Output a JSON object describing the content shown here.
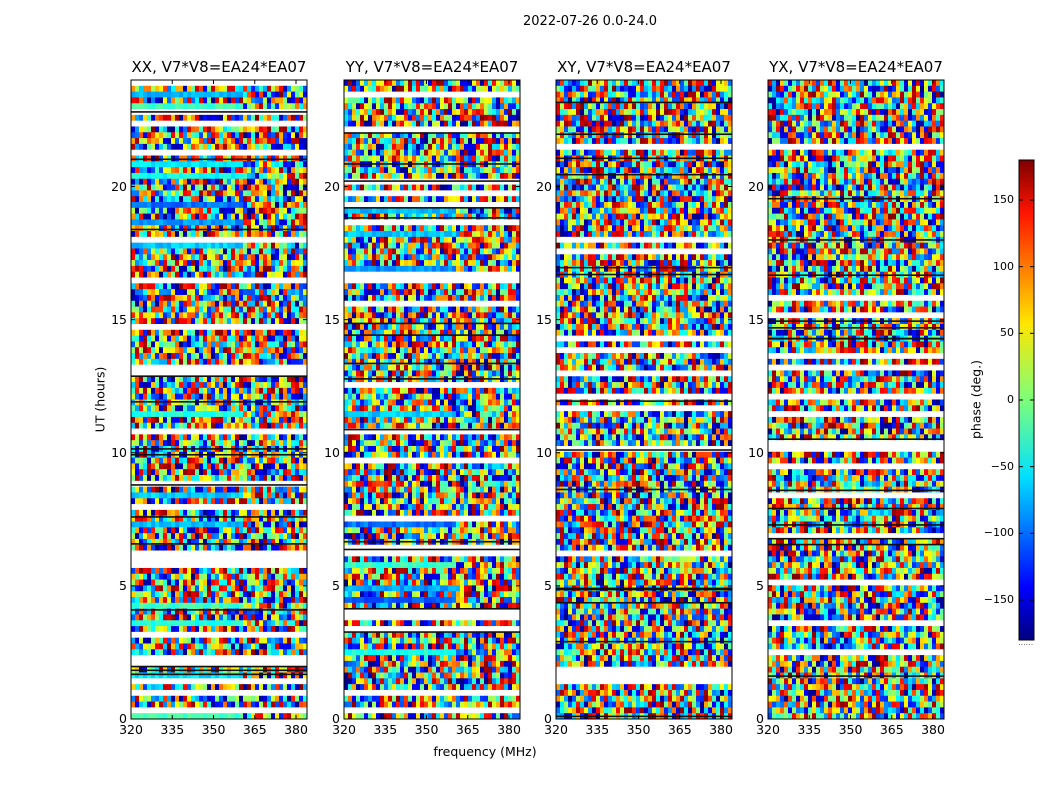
{
  "title": "2022-07-26 0.0-24.0",
  "chart_data": {
    "type": "heatmap",
    "title": "2022-07-26 0.0-24.0",
    "xlabel": "frequency (MHz)",
    "ylabel": "UT (hours)",
    "xlim": [
      320,
      384
    ],
    "ylim": [
      0,
      24
    ],
    "x_ticks": [
      320,
      335,
      350,
      365,
      380
    ],
    "y_ticks": [
      0,
      5,
      10,
      15,
      20
    ],
    "colorbar": {
      "label": "phase (deg.)",
      "range": [
        -180,
        180
      ],
      "ticks": [
        -150,
        -100,
        -50,
        0,
        50,
        100,
        150
      ],
      "colormap": "jet",
      "under_label": "......"
    },
    "panels": [
      {
        "title": "XX, V7*V8=EA24*EA07",
        "polarization": "XX",
        "baseline": "V7*V8=EA24*EA07"
      },
      {
        "title": "YY, V7*V8=EA24*EA07",
        "polarization": "YY",
        "baseline": "V7*V8=EA24*EA07"
      },
      {
        "title": "XY, V7*V8=EA24*EA07",
        "polarization": "XY",
        "baseline": "V7*V8=EA24*EA07"
      },
      {
        "title": "YX, V7*V8=EA24*EA07",
        "polarization": "YX",
        "baseline": "V7*V8=EA24*EA07"
      }
    ]
  }
}
